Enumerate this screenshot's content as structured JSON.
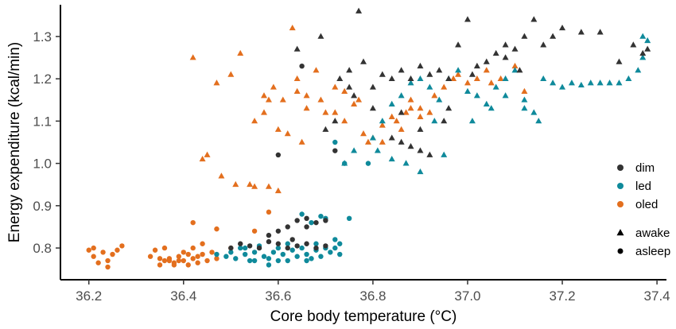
{
  "chart_data": {
    "type": "scatter",
    "xlabel": "Core body temperature (°C)",
    "ylabel": "Energy expenditure (kcal/min)",
    "xlim": [
      36.14,
      37.42
    ],
    "ylim": [
      0.725,
      1.375
    ],
    "xticks": [
      "36.2",
      "36.4",
      "36.6",
      "36.8",
      "37.0",
      "37.2",
      "37.4"
    ],
    "yticks": [
      "0.8",
      "0.9",
      "1.0",
      "1.1",
      "1.2",
      "1.3"
    ],
    "grid": false,
    "legend_position": "right",
    "legend": {
      "colors": [
        {
          "name": "dim",
          "color": "#333333"
        },
        {
          "name": "led",
          "color": "#0f8a9b"
        },
        {
          "name": "oled",
          "color": "#e36f1e"
        }
      ],
      "shapes": [
        {
          "name": "awake",
          "marker": "triangle"
        },
        {
          "name": "asleep",
          "marker": "circle"
        }
      ]
    },
    "series": [
      {
        "name": "oled",
        "color": "#e36f1e",
        "asleep": [
          [
            36.2,
            0.795
          ],
          [
            36.21,
            0.78
          ],
          [
            36.22,
            0.765
          ],
          [
            36.23,
            0.79
          ],
          [
            36.24,
            0.755
          ],
          [
            36.25,
            0.785
          ],
          [
            36.26,
            0.795
          ],
          [
            36.27,
            0.805
          ],
          [
            36.21,
            0.8
          ],
          [
            36.24,
            0.77
          ],
          [
            36.33,
            0.78
          ],
          [
            36.34,
            0.795
          ],
          [
            36.35,
            0.76
          ],
          [
            36.36,
            0.77
          ],
          [
            36.37,
            0.775
          ],
          [
            36.38,
            0.765
          ],
          [
            36.39,
            0.78
          ],
          [
            36.4,
            0.77
          ],
          [
            36.41,
            0.785
          ],
          [
            36.42,
            0.775
          ],
          [
            36.43,
            0.765
          ],
          [
            36.4,
            0.79
          ],
          [
            36.42,
            0.8
          ],
          [
            36.44,
            0.785
          ],
          [
            36.45,
            0.77
          ],
          [
            36.36,
            0.8
          ],
          [
            36.38,
            0.76
          ],
          [
            36.41,
            0.76
          ],
          [
            36.39,
            0.77
          ],
          [
            36.35,
            0.775
          ],
          [
            36.37,
            0.77
          ],
          [
            36.43,
            0.78
          ],
          [
            36.42,
            0.86
          ],
          [
            36.44,
            0.81
          ],
          [
            36.46,
            0.79
          ],
          [
            36.47,
            0.775
          ],
          [
            36.5,
            0.8
          ],
          [
            36.47,
            0.845
          ],
          [
            36.55,
            0.84
          ],
          [
            36.58,
            0.885
          ]
        ],
        "awake": [
          [
            36.42,
            1.25
          ],
          [
            36.5,
            1.21
          ],
          [
            36.52,
            1.26
          ],
          [
            36.47,
            1.19
          ],
          [
            36.59,
            1.18
          ],
          [
            36.61,
            1.15
          ],
          [
            36.63,
            1.32
          ],
          [
            36.64,
            1.2
          ],
          [
            36.66,
            1.16
          ],
          [
            36.68,
            1.22
          ],
          [
            36.69,
            1.15
          ],
          [
            36.7,
            1.12
          ],
          [
            36.72,
            1.18
          ],
          [
            36.74,
            1.1
          ],
          [
            36.76,
            1.14
          ],
          [
            36.78,
            1.07
          ],
          [
            36.79,
            1.05
          ],
          [
            36.8,
            1.06
          ],
          [
            36.82,
            1.09
          ],
          [
            36.84,
            1.11
          ],
          [
            36.85,
            1.1
          ],
          [
            36.87,
            1.12
          ],
          [
            36.88,
            1.13
          ],
          [
            36.9,
            1.11
          ],
          [
            36.92,
            1.12
          ],
          [
            36.88,
            1.15
          ],
          [
            36.93,
            1.16
          ],
          [
            36.95,
            1.18
          ],
          [
            36.97,
            1.2
          ],
          [
            36.98,
            1.21
          ],
          [
            37.0,
            1.19
          ],
          [
            37.02,
            1.2
          ],
          [
            37.04,
            1.22
          ],
          [
            37.07,
            1.2
          ],
          [
            37.1,
            1.23
          ],
          [
            37.12,
            1.17
          ],
          [
            37.05,
            1.19
          ],
          [
            36.86,
            1.08
          ],
          [
            36.82,
            1.05
          ],
          [
            36.9,
            1.13
          ],
          [
            36.55,
            1.1
          ],
          [
            36.57,
            1.12
          ],
          [
            36.6,
            1.08
          ],
          [
            36.62,
            1.07
          ],
          [
            36.57,
            1.16
          ],
          [
            36.45,
            1.02
          ],
          [
            36.44,
            1.01
          ],
          [
            36.48,
            0.97
          ],
          [
            36.51,
            0.95
          ],
          [
            36.54,
            0.95
          ],
          [
            36.55,
            0.945
          ],
          [
            36.58,
            0.945
          ],
          [
            36.6,
            0.935
          ],
          [
            36.65,
            1.05
          ],
          [
            36.58,
            1.15
          ],
          [
            36.64,
            1.17
          ],
          [
            36.66,
            1.13
          ],
          [
            36.72,
            1.12
          ],
          [
            36.74,
            1.17
          ],
          [
            36.77,
            1.15
          ]
        ]
      },
      {
        "name": "led",
        "color": "#0f8a9b",
        "asleep": [
          [
            36.47,
            0.785
          ],
          [
            36.49,
            0.78
          ],
          [
            36.5,
            0.79
          ],
          [
            36.51,
            0.775
          ],
          [
            36.52,
            0.8
          ],
          [
            36.53,
            0.785
          ],
          [
            36.54,
            0.77
          ],
          [
            36.55,
            0.79
          ],
          [
            36.56,
            0.805
          ],
          [
            36.57,
            0.78
          ],
          [
            36.58,
            0.775
          ],
          [
            36.59,
            0.79
          ],
          [
            36.6,
            0.8
          ],
          [
            36.61,
            0.785
          ],
          [
            36.62,
            0.77
          ],
          [
            36.63,
            0.795
          ],
          [
            36.64,
            0.78
          ],
          [
            36.65,
            0.8
          ],
          [
            36.66,
            0.785
          ],
          [
            36.67,
            0.775
          ],
          [
            36.68,
            0.795
          ],
          [
            36.69,
            0.78
          ],
          [
            36.7,
            0.8
          ],
          [
            36.71,
            0.79
          ],
          [
            36.72,
            0.8
          ],
          [
            36.73,
            0.785
          ],
          [
            36.55,
            0.77
          ],
          [
            36.53,
            0.8
          ],
          [
            36.6,
            0.77
          ],
          [
            36.62,
            0.81
          ],
          [
            36.66,
            0.77
          ],
          [
            36.68,
            0.81
          ],
          [
            36.7,
            0.87
          ],
          [
            36.69,
            0.875
          ],
          [
            36.67,
            0.86
          ],
          [
            36.65,
            0.88
          ],
          [
            36.72,
            0.82
          ],
          [
            36.75,
            0.87
          ],
          [
            36.73,
            0.81
          ],
          [
            36.58,
            0.76
          ],
          [
            36.74,
            1.0
          ],
          [
            36.72,
            1.05
          ],
          [
            36.79,
            1.0
          ]
        ],
        "awake": [
          [
            36.8,
            1.06
          ],
          [
            36.82,
            1.1
          ],
          [
            36.84,
            1.14
          ],
          [
            36.86,
            1.16
          ],
          [
            36.88,
            1.19
          ],
          [
            36.9,
            1.2
          ],
          [
            36.92,
            1.18
          ],
          [
            36.94,
            1.15
          ],
          [
            36.96,
            1.2
          ],
          [
            36.98,
            1.22
          ],
          [
            37.0,
            1.17
          ],
          [
            37.02,
            1.16
          ],
          [
            37.04,
            1.14
          ],
          [
            37.06,
            1.18
          ],
          [
            37.08,
            1.2
          ],
          [
            37.1,
            1.22
          ],
          [
            37.12,
            1.15
          ],
          [
            37.14,
            1.12
          ],
          [
            37.16,
            1.2
          ],
          [
            37.18,
            1.19
          ],
          [
            37.2,
            1.18
          ],
          [
            37.22,
            1.19
          ],
          [
            37.24,
            1.185
          ],
          [
            37.26,
            1.19
          ],
          [
            37.28,
            1.19
          ],
          [
            37.3,
            1.19
          ],
          [
            37.32,
            1.19
          ],
          [
            37.34,
            1.2
          ],
          [
            37.36,
            1.22
          ],
          [
            37.37,
            1.25
          ],
          [
            37.38,
            1.29
          ],
          [
            37.37,
            1.3
          ],
          [
            36.76,
            1.03
          ],
          [
            36.74,
            1.0
          ],
          [
            36.81,
            1.03
          ],
          [
            36.84,
            1.01
          ],
          [
            36.87,
            1.0
          ],
          [
            36.9,
            0.98
          ],
          [
            36.95,
            1.02
          ],
          [
            37.05,
            1.13
          ],
          [
            37.08,
            1.16
          ],
          [
            37.12,
            1.13
          ],
          [
            36.93,
            1.1
          ],
          [
            37.01,
            1.1
          ],
          [
            37.15,
            1.1
          ]
        ]
      },
      {
        "name": "dim",
        "color": "#333333",
        "asleep": [
          [
            36.5,
            0.8
          ],
          [
            36.52,
            0.81
          ],
          [
            36.54,
            0.805
          ],
          [
            36.56,
            0.8
          ],
          [
            36.58,
            0.815
          ],
          [
            36.6,
            0.81
          ],
          [
            36.62,
            0.8
          ],
          [
            36.64,
            0.805
          ],
          [
            36.66,
            0.81
          ],
          [
            36.68,
            0.8
          ],
          [
            36.7,
            0.805
          ],
          [
            36.58,
            0.83
          ],
          [
            36.6,
            0.84
          ],
          [
            36.62,
            0.85
          ],
          [
            36.64,
            0.865
          ],
          [
            36.66,
            0.87
          ],
          [
            36.68,
            0.86
          ],
          [
            36.7,
            0.865
          ],
          [
            36.66,
            0.85
          ],
          [
            36.63,
            0.82
          ],
          [
            36.6,
            1.02
          ],
          [
            36.65,
            1.23
          ],
          [
            36.72,
            1.03
          ]
        ],
        "awake": [
          [
            36.64,
            1.27
          ],
          [
            36.69,
            1.3
          ],
          [
            36.73,
            1.2
          ],
          [
            36.75,
            1.22
          ],
          [
            36.77,
            1.36
          ],
          [
            36.78,
            1.24
          ],
          [
            36.8,
            1.18
          ],
          [
            36.82,
            1.21
          ],
          [
            36.84,
            1.2
          ],
          [
            36.86,
            1.22
          ],
          [
            36.88,
            1.2
          ],
          [
            36.9,
            1.23
          ],
          [
            36.92,
            1.21
          ],
          [
            36.94,
            1.22
          ],
          [
            36.96,
            1.2
          ],
          [
            36.98,
            1.28
          ],
          [
            37.0,
            1.34
          ],
          [
            37.02,
            1.23
          ],
          [
            37.04,
            1.24
          ],
          [
            37.06,
            1.26
          ],
          [
            37.08,
            1.28
          ],
          [
            37.1,
            1.27
          ],
          [
            37.12,
            1.3
          ],
          [
            37.14,
            1.34
          ],
          [
            37.16,
            1.28
          ],
          [
            37.18,
            1.3
          ],
          [
            37.2,
            1.32
          ],
          [
            37.24,
            1.31
          ],
          [
            37.28,
            1.31
          ],
          [
            37.32,
            1.24
          ],
          [
            37.35,
            1.28
          ],
          [
            37.37,
            1.26
          ],
          [
            37.38,
            1.27
          ],
          [
            36.86,
            1.05
          ],
          [
            36.88,
            1.04
          ],
          [
            36.9,
            1.03
          ],
          [
            36.92,
            1.02
          ],
          [
            36.84,
            1.06
          ],
          [
            36.9,
            1.08
          ],
          [
            36.95,
            1.1
          ],
          [
            36.8,
            1.13
          ],
          [
            36.76,
            1.16
          ],
          [
            36.72,
            1.1
          ],
          [
            36.7,
            1.08
          ],
          [
            36.86,
            1.12
          ],
          [
            37.01,
            1.21
          ],
          [
            37.11,
            1.22
          ],
          [
            36.96,
            1.13
          ],
          [
            37.08,
            1.25
          ],
          [
            36.75,
            1.18
          ]
        ]
      }
    ]
  }
}
